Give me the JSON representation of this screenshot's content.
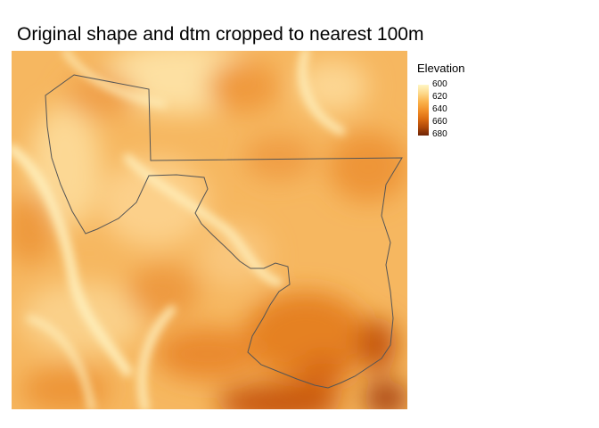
{
  "title": "Original shape and dtm cropped to nearest 100m",
  "legend": {
    "title": "Elevation",
    "ticks": [
      "600",
      "620",
      "640",
      "660",
      "680"
    ]
  },
  "colors": {
    "low": "#fff7c6",
    "mid": "#f2912a",
    "high": "#6f2507",
    "boundary": "#555555"
  }
}
